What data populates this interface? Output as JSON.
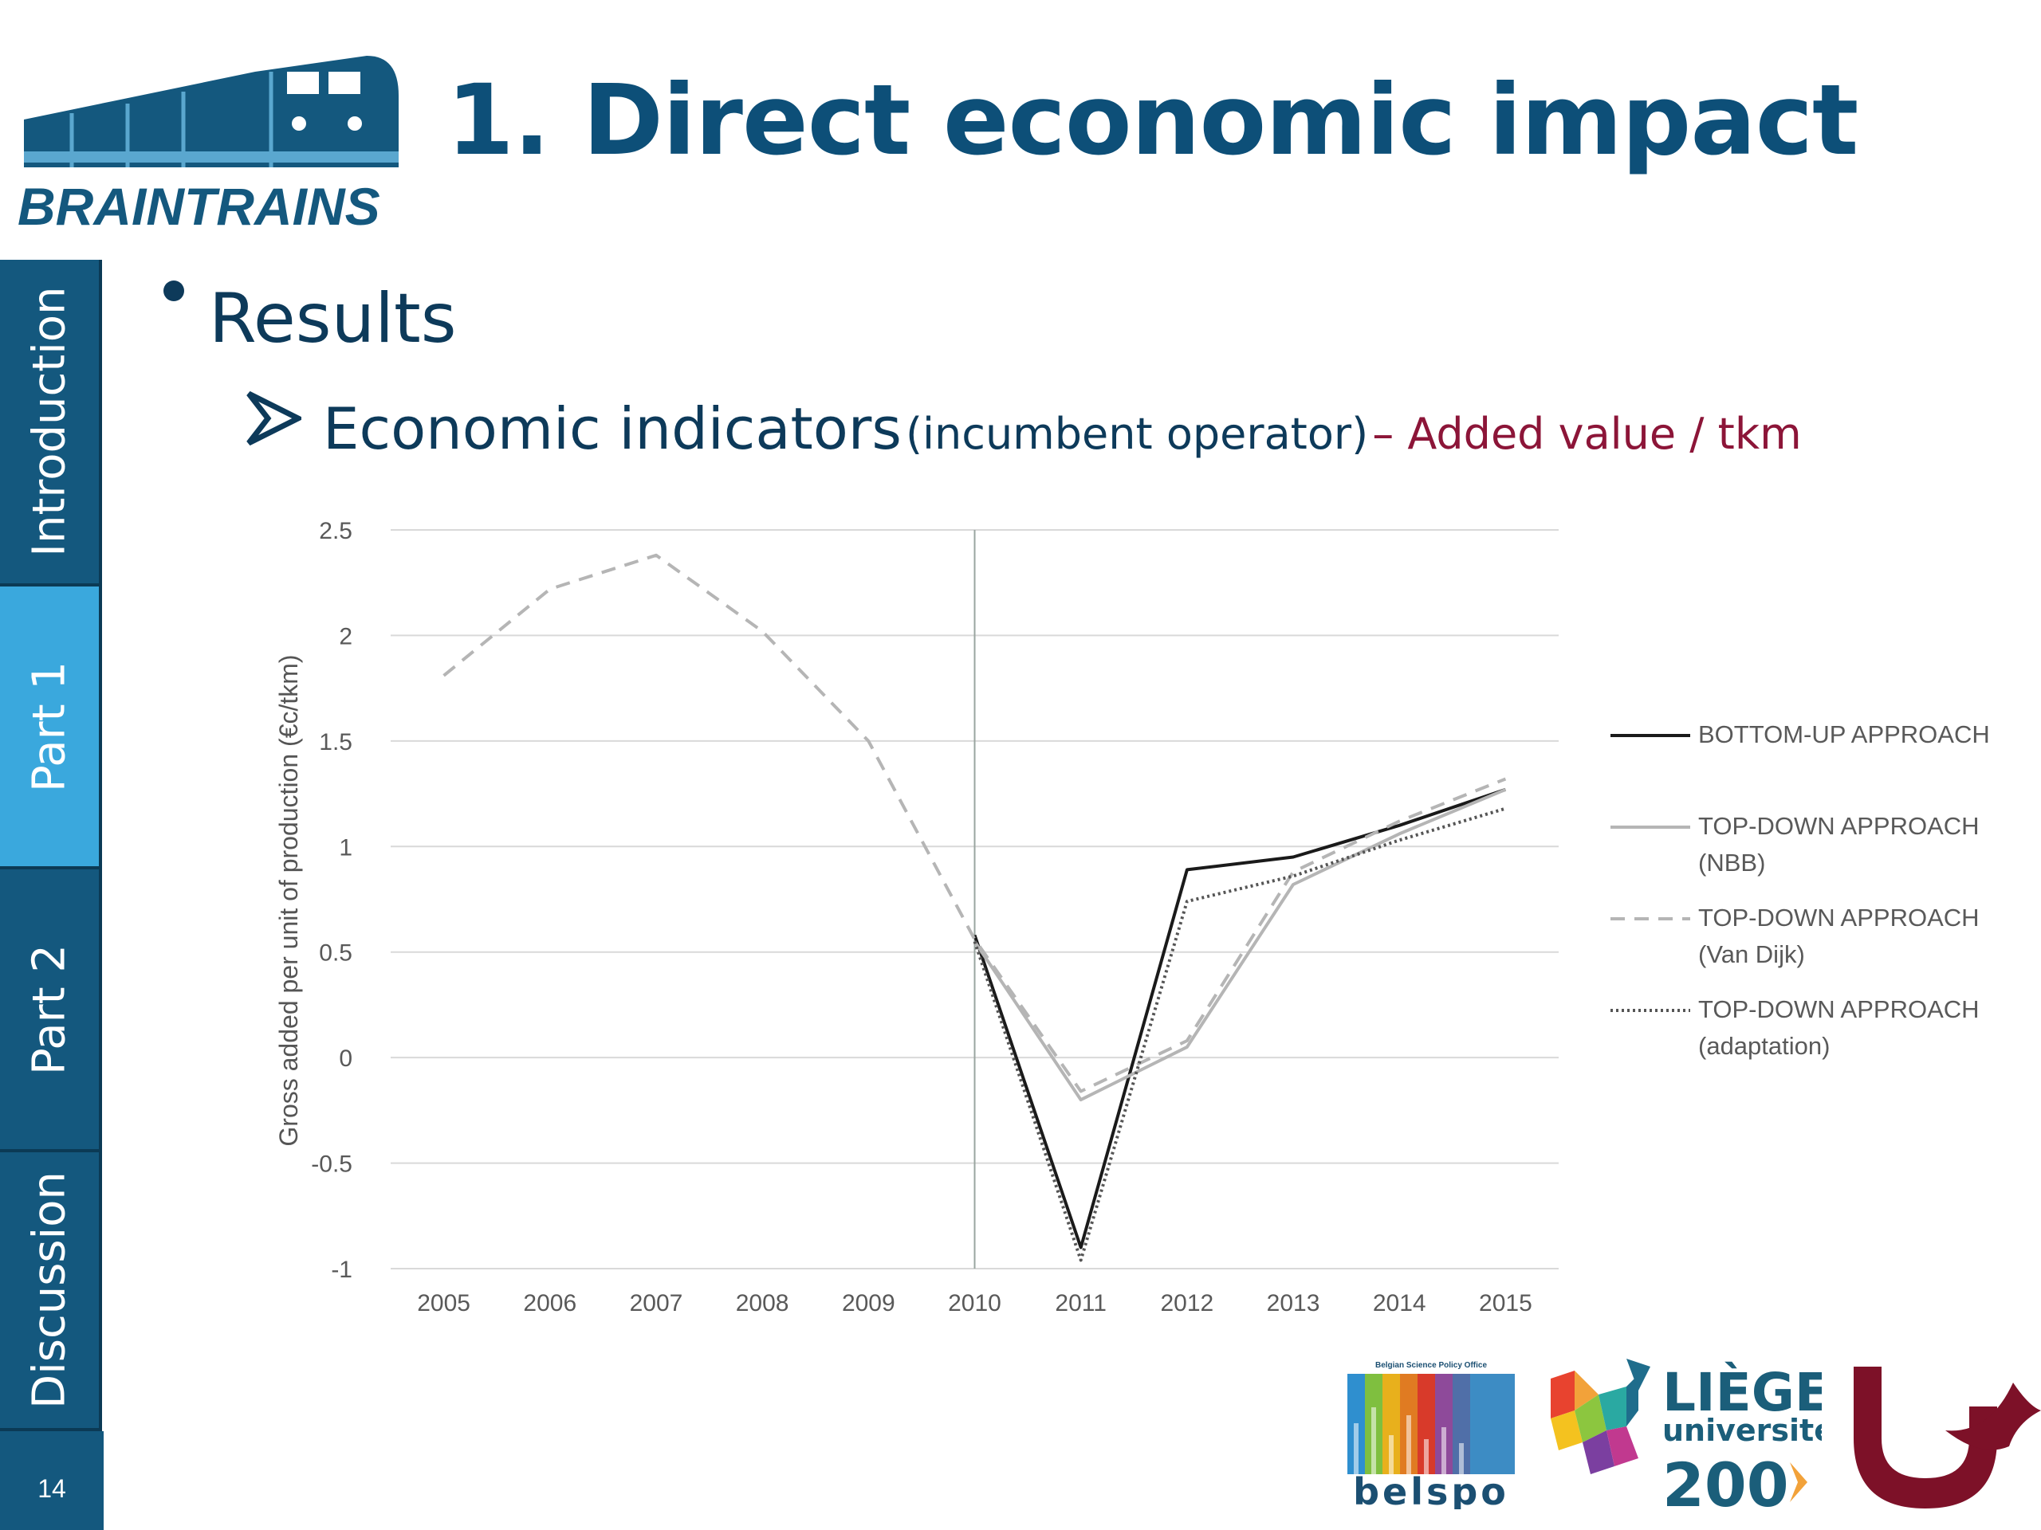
{
  "header": {
    "logo_text": "BRAINTRAINS",
    "title": "1. Direct economic impact"
  },
  "sidebar": {
    "tabs": [
      {
        "label": "Introduction",
        "active": false
      },
      {
        "label": "Part 1",
        "active": true
      },
      {
        "label": "Part 2",
        "active": false
      },
      {
        "label": "Discussion",
        "active": false
      }
    ],
    "page_number": "14",
    "colors": {
      "tab": "#14587e",
      "active_tab": "#3aa8dd"
    }
  },
  "content": {
    "bullet_text": "Results",
    "sub_bullet_main": "Economic indicators",
    "sub_bullet_paren": "(incumbent operator)",
    "sub_bullet_accent": "– Added value / tkm",
    "colors": {
      "text": "#0d3a5a",
      "accent": "#8c1538",
      "title": "#0d4f78"
    }
  },
  "chart_data": {
    "type": "line",
    "title": "",
    "xlabel": "",
    "ylabel": "Gross added per unit of production (€c/tkm)",
    "x": [
      "2005",
      "2006",
      "2007",
      "2008",
      "2009",
      "2010",
      "2011",
      "2012",
      "2013",
      "2014",
      "2015"
    ],
    "ylim": [
      -1,
      2.5
    ],
    "yticks": [
      "2.5",
      "2",
      "1.5",
      "1",
      "0.5",
      "0",
      "-0.5",
      "-1"
    ],
    "grid": true,
    "vertical_marker_at": "2010",
    "legend_position": "right",
    "series": [
      {
        "name": "BOTTOM-UP APPROACH",
        "style": "solid",
        "color": "#1a1a1a",
        "values": [
          null,
          null,
          null,
          null,
          null,
          0.58,
          -0.9,
          0.89,
          0.95,
          1.1,
          1.27
        ]
      },
      {
        "name": "TOP-DOWN APPROACH (NBB)",
        "style": "solid",
        "color": "#b5b5b5",
        "values": [
          null,
          null,
          null,
          null,
          null,
          0.55,
          -0.2,
          0.05,
          0.82,
          1.06,
          1.27
        ]
      },
      {
        "name": "TOP-DOWN APPROACH (Van Dijk)",
        "style": "dashed",
        "color": "#b5b5b5",
        "values": [
          1.81,
          2.22,
          2.38,
          2.02,
          1.5,
          0.56,
          -0.16,
          0.08,
          0.88,
          1.12,
          1.32
        ]
      },
      {
        "name": "TOP-DOWN APPROACH (adaptation)",
        "style": "dotted",
        "color": "#555555",
        "values": [
          null,
          null,
          null,
          null,
          null,
          0.55,
          -0.96,
          0.74,
          0.86,
          1.03,
          1.18
        ]
      }
    ]
  },
  "footer": {
    "belspo_caption": "Belgian Science Policy Office",
    "belspo_name": "belspo",
    "liege_name": "LIÈGE",
    "liege_sub": "université",
    "liege_year": "200",
    "colors": {
      "liege": "#1b5e7a",
      "maroon": "#7d1128"
    }
  }
}
